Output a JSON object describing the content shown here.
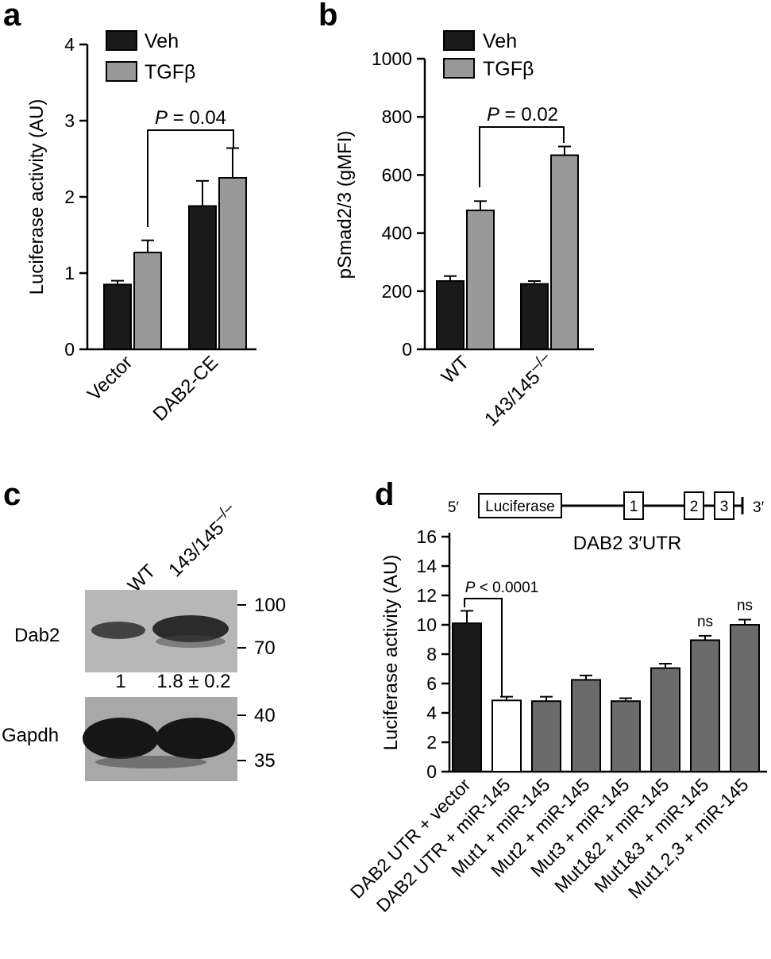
{
  "chart_data": [
    {
      "panel": "a",
      "type": "bar",
      "ylabel": "Luciferase activity (AU)",
      "ylim": [
        0,
        4
      ],
      "yticks": [
        "0",
        "1",
        "2",
        "3",
        "4"
      ],
      "categories": [
        "Vector",
        "DAB2-CE"
      ],
      "series": [
        {
          "name": "Veh",
          "color": "#1a1a1a",
          "values": [
            0.85,
            1.88
          ],
          "errors": [
            0.05,
            0.33
          ]
        },
        {
          "name": "TGFβ",
          "color": "#999999",
          "values": [
            1.27,
            2.25
          ],
          "errors": [
            0.16,
            0.39
          ]
        }
      ],
      "comparison": {
        "label_italic": "P",
        "label_rest": " = 0.04"
      }
    },
    {
      "panel": "b",
      "type": "bar",
      "ylabel": "pSmad2/3 (gMFI)",
      "ylim": [
        0,
        1000
      ],
      "yticks": [
        "0",
        "200",
        "400",
        "600",
        "800",
        "1000"
      ],
      "categories": [
        "WT",
        "143/145"
      ],
      "category_superscript": "–/–",
      "series": [
        {
          "name": "Veh",
          "color": "#1a1a1a",
          "values": [
            235,
            225
          ],
          "errors": [
            17,
            10
          ]
        },
        {
          "name": "TGFβ",
          "color": "#999999",
          "values": [
            478,
            668
          ],
          "errors": [
            32,
            30
          ]
        }
      ],
      "comparison": {
        "label_italic": "P",
        "label_rest": " = 0.02"
      }
    },
    {
      "panel": "d",
      "type": "bar",
      "ylabel": "Luciferase activity (AU)",
      "ylim": [
        0,
        16
      ],
      "yticks": [
        "0",
        "2",
        "4",
        "6",
        "8",
        "10",
        "12",
        "14",
        "16"
      ],
      "categories": [
        "DAB2 UTR + vector",
        "DAB2 UTR + miR-145",
        "Mut1 + miR-145",
        "Mut2 + miR-145",
        "Mut3 + miR-145",
        "Mut1&2 + miR-145",
        "Mut1&3 + miR-145",
        "Mut1,2,3 + miR-145"
      ],
      "values": [
        10.1,
        4.85,
        4.8,
        6.25,
        4.8,
        7.05,
        8.95,
        10.0
      ],
      "errors": [
        0.85,
        0.25,
        0.3,
        0.3,
        0.2,
        0.3,
        0.3,
        0.35
      ],
      "colors": [
        "#1a1a1a",
        "#ffffff",
        "#6b6b6b",
        "#6b6b6b",
        "#6b6b6b",
        "#6b6b6b",
        "#6b6b6b",
        "#6b6b6b"
      ],
      "annotations": [
        "",
        "",
        "",
        "",
        "",
        "",
        "ns",
        "ns"
      ],
      "comparison": {
        "label_italic": "P",
        "label_rest": " < 0.0001"
      }
    }
  ],
  "panels": {
    "a": {
      "letter": "a"
    },
    "b": {
      "letter": "b"
    },
    "c": {
      "letter": "c"
    },
    "d": {
      "letter": "d"
    }
  },
  "blot": {
    "lanes": [
      "WT",
      "143/145"
    ],
    "lane_superscript": "–/–",
    "rows": [
      {
        "name": "Dab2",
        "markers": [
          "100",
          "70"
        ]
      },
      {
        "name": "Gapdh",
        "markers": [
          "40",
          "35"
        ]
      }
    ],
    "quant": [
      "1",
      "1.8 ± 0.2"
    ]
  },
  "construct": {
    "five_prime": "5′",
    "three_prime": "3′",
    "gene": "Luciferase",
    "sites": [
      "1",
      "2",
      "3"
    ],
    "caption": "DAB2 3′UTR"
  }
}
